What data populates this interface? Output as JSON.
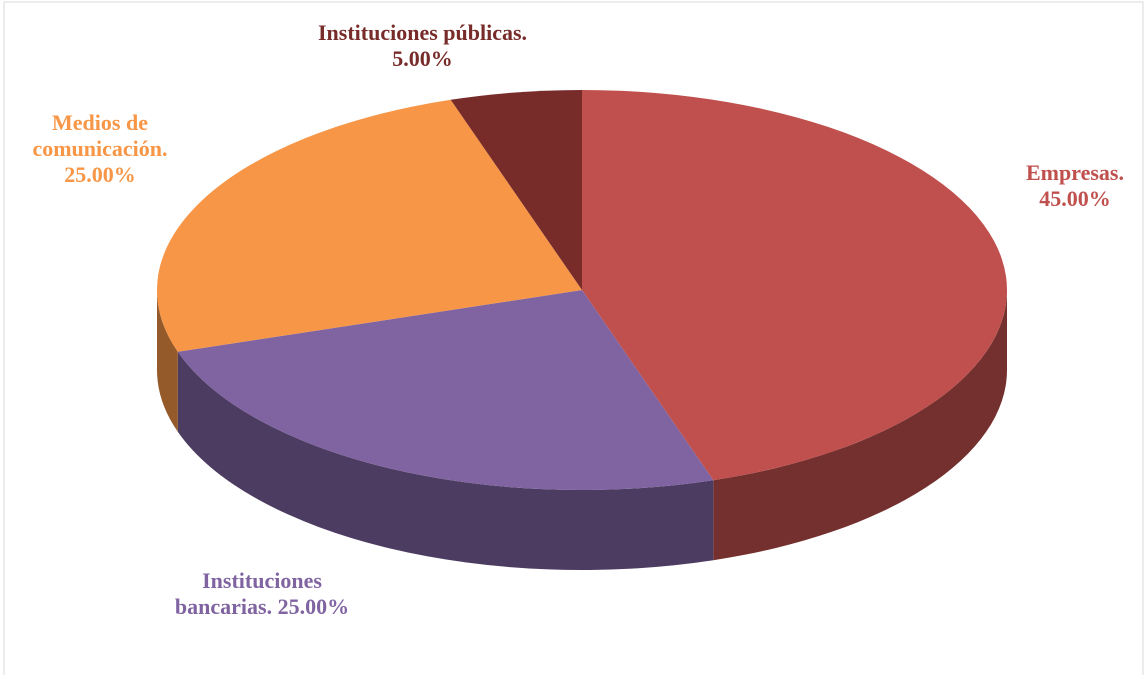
{
  "chart_data": {
    "type": "pie",
    "categories": [
      "Empresas.",
      "Instituciones bancarias.",
      "Medios de comunicación.",
      "Instituciones públicas."
    ],
    "values": [
      45,
      25,
      25,
      5
    ],
    "value_labels": [
      "45.00%",
      "25.00%",
      "25.00%",
      "5.00%"
    ],
    "colors": [
      "#c0504d",
      "#8064a2",
      "#f79646",
      "#772c2a"
    ]
  }
}
